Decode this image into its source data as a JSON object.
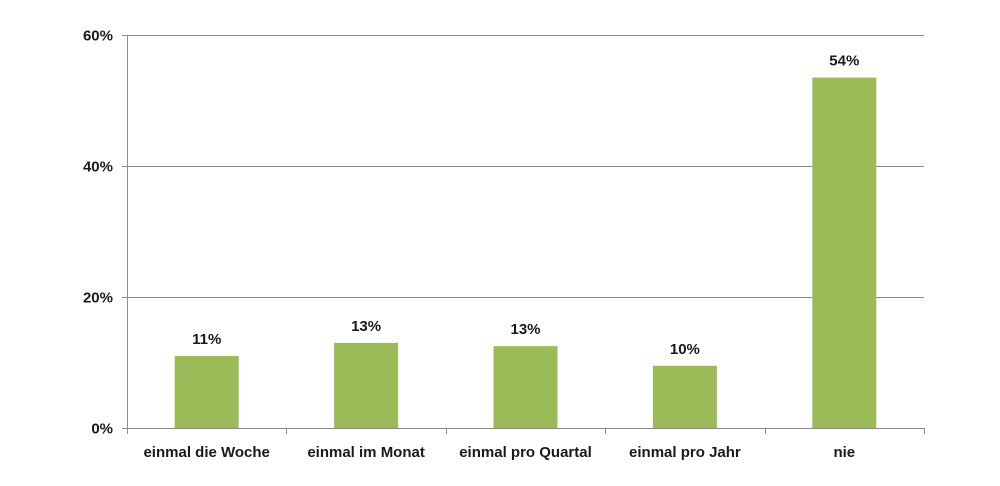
{
  "chart_data": {
    "type": "bar",
    "categories": [
      "einmal die Woche",
      "einmal im Monat",
      "einmal pro Quartal",
      "einmal pro Jahr",
      "nie"
    ],
    "values": [
      11,
      13,
      12.5,
      9.5,
      53.5
    ],
    "data_labels": [
      "11%",
      "13%",
      "13%",
      "10%",
      "54%"
    ],
    "ylim": [
      0,
      60
    ],
    "yticks": [
      0,
      20,
      40,
      60
    ],
    "ytick_labels": [
      "0%",
      "20%",
      "40%",
      "60%"
    ],
    "grid": true,
    "legend": "none",
    "colors": {
      "bar": "#9bbb59",
      "grid": "#8c8c8c",
      "axis": "#8c8c8c"
    }
  }
}
